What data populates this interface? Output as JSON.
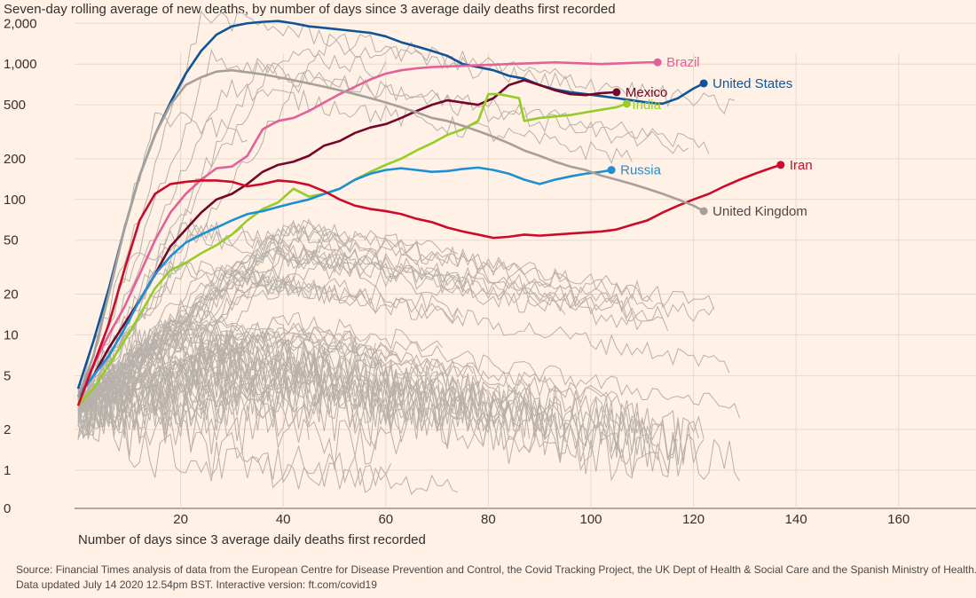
{
  "subtitle": "Seven-day rolling average of new deaths, by number of days since 3 average daily deaths first recorded",
  "source_line1": "Source: Financial Times analysis of data from the European Centre for Disease Prevention and Control, the Covid Tracking Project, the UK Dept of Health & Social Care and the Spanish Ministry of Health.",
  "source_line2": "Data updated July 14 2020 12.54pm BST. Interactive version: ft.com/covid19",
  "colors": {
    "background": "#fff1e5",
    "grid": "#e6d9ce",
    "background_series": "#b8b1ab",
    "Brazil": "#e3609b",
    "United States": "#0f5499",
    "Mexico": "#74062b",
    "India": "#96cc28",
    "Russia": "#1e8fd2",
    "Iran": "#cc0a2a",
    "United Kingdom": "#a6a09b"
  },
  "chart_data": {
    "type": "line",
    "xlabel": "Number of days since 3 average daily deaths first recorded",
    "ylabel": "",
    "y_scale": "log-like (0 at bottom, 1 to 2,000 logarithmic)",
    "xlim": [
      0,
      174
    ],
    "ylim": [
      0,
      3000
    ],
    "x_ticks": [
      20,
      40,
      60,
      80,
      100,
      120,
      140,
      160
    ],
    "x_tick_labels": [
      "20",
      "40",
      "60",
      "80",
      "100",
      "120",
      "140",
      "160"
    ],
    "y_ticks": [
      0,
      1,
      2,
      5,
      10,
      20,
      50,
      100,
      200,
      500,
      1000,
      2000
    ],
    "y_tick_labels": [
      "0",
      "1",
      "2",
      "5",
      "10",
      "20",
      "50",
      "100",
      "200",
      "500",
      "1,000",
      "2,000"
    ],
    "grid": true,
    "legend": "direct labels at line ends",
    "series": [
      {
        "name": "United States",
        "x": [
          0,
          3,
          6,
          9,
          12,
          15,
          18,
          21,
          24,
          27,
          30,
          33,
          36,
          39,
          42,
          45,
          48,
          51,
          54,
          57,
          60,
          63,
          66,
          69,
          72,
          75,
          78,
          81,
          84,
          87,
          90,
          93,
          96,
          99,
          102,
          105,
          108,
          111,
          114,
          117,
          120,
          122
        ],
        "y": [
          4,
          9,
          22,
          60,
          150,
          300,
          520,
          850,
          1250,
          1650,
          1900,
          2000,
          2050,
          2080,
          2000,
          1900,
          1850,
          1800,
          1750,
          1700,
          1600,
          1450,
          1350,
          1250,
          1150,
          1000,
          950,
          900,
          820,
          780,
          700,
          650,
          620,
          600,
          580,
          560,
          540,
          520,
          510,
          560,
          660,
          720
        ]
      },
      {
        "name": "Brazil",
        "x": [
          0,
          3,
          6,
          9,
          12,
          15,
          18,
          21,
          24,
          27,
          30,
          33,
          36,
          39,
          42,
          45,
          48,
          51,
          54,
          57,
          60,
          63,
          66,
          69,
          72,
          75,
          78,
          81,
          84,
          87,
          90,
          93,
          96,
          99,
          102,
          105,
          108,
          111,
          113
        ],
        "y": [
          3.5,
          6,
          10,
          16,
          28,
          50,
          80,
          110,
          140,
          170,
          175,
          210,
          330,
          380,
          400,
          450,
          520,
          600,
          680,
          770,
          850,
          900,
          930,
          950,
          960,
          970,
          980,
          990,
          1000,
          1010,
          1020,
          1030,
          1020,
          1010,
          1000,
          1010,
          1020,
          1030,
          1030
        ]
      },
      {
        "name": "Mexico",
        "x": [
          0,
          3,
          6,
          9,
          12,
          15,
          18,
          21,
          24,
          27,
          30,
          33,
          36,
          39,
          42,
          45,
          48,
          51,
          54,
          57,
          60,
          63,
          66,
          69,
          72,
          75,
          78,
          81,
          84,
          87,
          90,
          93,
          96,
          99,
          102,
          105
        ],
        "y": [
          3.5,
          5,
          8,
          12,
          18,
          28,
          45,
          60,
          80,
          100,
          110,
          130,
          160,
          180,
          190,
          210,
          250,
          270,
          310,
          340,
          360,
          400,
          450,
          500,
          540,
          520,
          500,
          560,
          700,
          760,
          700,
          640,
          600,
          590,
          610,
          620
        ]
      },
      {
        "name": "India",
        "x": [
          0,
          3,
          6,
          9,
          12,
          15,
          18,
          21,
          24,
          27,
          30,
          33,
          36,
          39,
          42,
          45,
          48,
          51,
          54,
          57,
          60,
          63,
          66,
          69,
          72,
          75,
          78,
          80,
          82,
          84,
          86,
          87,
          90,
          93,
          96,
          99,
          102,
          105,
          107
        ],
        "y": [
          3,
          4,
          6,
          9,
          14,
          22,
          30,
          34,
          40,
          46,
          55,
          70,
          85,
          95,
          120,
          105,
          110,
          120,
          140,
          160,
          180,
          200,
          230,
          260,
          300,
          330,
          380,
          600,
          600,
          580,
          560,
          380,
          400,
          410,
          420,
          440,
          460,
          480,
          510
        ]
      },
      {
        "name": "Russia",
        "x": [
          0,
          3,
          6,
          9,
          12,
          15,
          18,
          21,
          24,
          27,
          30,
          33,
          36,
          39,
          42,
          45,
          48,
          51,
          54,
          57,
          60,
          63,
          66,
          69,
          72,
          75,
          78,
          81,
          84,
          87,
          90,
          93,
          96,
          99,
          102,
          104
        ],
        "y": [
          3.5,
          5,
          7,
          11,
          18,
          28,
          38,
          48,
          55,
          62,
          70,
          78,
          82,
          88,
          94,
          100,
          110,
          120,
          140,
          155,
          165,
          170,
          165,
          160,
          162,
          168,
          172,
          165,
          155,
          140,
          130,
          140,
          148,
          155,
          160,
          165
        ]
      },
      {
        "name": "Iran",
        "x": [
          0,
          3,
          6,
          9,
          12,
          15,
          18,
          21,
          24,
          27,
          30,
          33,
          36,
          39,
          42,
          45,
          48,
          51,
          54,
          57,
          60,
          63,
          66,
          69,
          72,
          75,
          78,
          81,
          84,
          87,
          90,
          93,
          96,
          99,
          102,
          105,
          108,
          111,
          114,
          117,
          120,
          123,
          126,
          129,
          132,
          135,
          137
        ],
        "y": [
          3,
          6,
          12,
          30,
          70,
          110,
          130,
          135,
          138,
          138,
          135,
          125,
          130,
          138,
          135,
          128,
          115,
          100,
          90,
          85,
          82,
          78,
          72,
          68,
          62,
          58,
          55,
          52,
          53,
          55,
          54,
          55,
          56,
          57,
          58,
          60,
          65,
          70,
          80,
          90,
          100,
          110,
          125,
          140,
          155,
          170,
          180
        ]
      },
      {
        "name": "United Kingdom",
        "x": [
          0,
          3,
          6,
          9,
          12,
          15,
          18,
          21,
          24,
          27,
          30,
          33,
          36,
          39,
          42,
          45,
          48,
          51,
          54,
          57,
          60,
          63,
          66,
          69,
          72,
          75,
          78,
          81,
          84,
          87,
          90,
          93,
          96,
          99,
          102,
          105,
          108,
          111,
          114,
          117,
          120,
          122
        ],
        "y": [
          3.5,
          7,
          20,
          60,
          150,
          300,
          500,
          700,
          800,
          880,
          900,
          870,
          840,
          800,
          760,
          720,
          680,
          640,
          600,
          560,
          520,
          480,
          440,
          400,
          380,
          350,
          320,
          290,
          260,
          230,
          210,
          190,
          175,
          165,
          150,
          140,
          130,
          120,
          110,
          100,
          90,
          82
        ]
      }
    ]
  }
}
